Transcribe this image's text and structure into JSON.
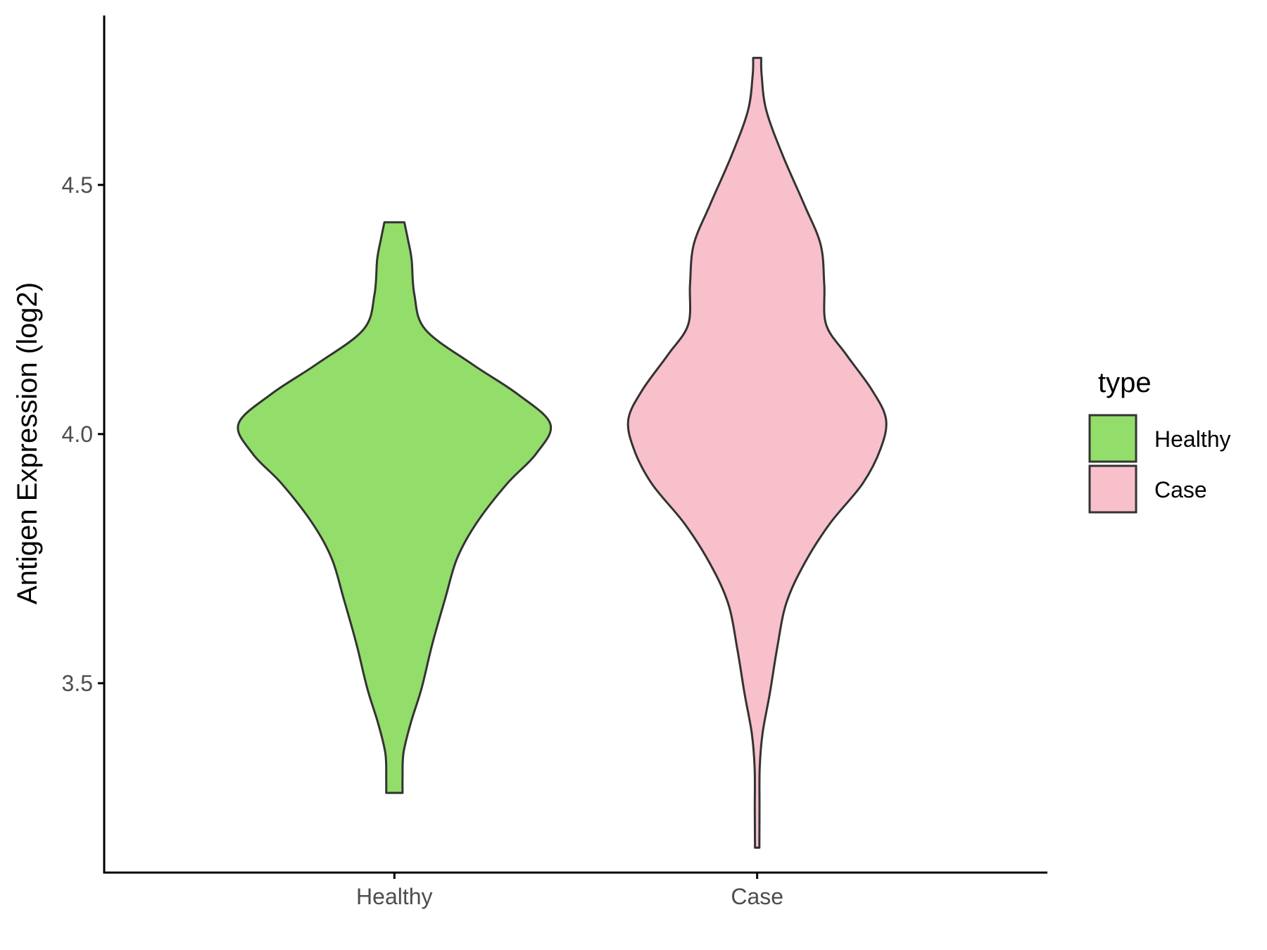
{
  "chart_data": {
    "type": "violin",
    "categories": [
      "Healthy",
      "Case"
    ],
    "ylabel": "Antigen Expression (log2)",
    "xlabel": "",
    "ylim": [
      3.12,
      4.84
    ],
    "yticks": [
      3.5,
      4.0,
      4.5
    ],
    "ytick_labels": [
      "3.5",
      "4.0",
      "4.5"
    ],
    "grid": false,
    "legend": {
      "title": "type",
      "position": "right",
      "entries": [
        {
          "label": "Healthy",
          "color": "#93dd6a"
        },
        {
          "label": "Case",
          "color": "#f7c0cb"
        }
      ]
    },
    "series": [
      {
        "category": "Healthy",
        "color": "#93dd6a",
        "min": 3.28,
        "max": 4.425,
        "density_profile": [
          [
            3.28,
            0.045
          ],
          [
            3.31,
            0.045
          ],
          [
            3.36,
            0.05
          ],
          [
            3.42,
            0.09
          ],
          [
            3.49,
            0.15
          ],
          [
            3.58,
            0.21
          ],
          [
            3.67,
            0.28
          ],
          [
            3.75,
            0.345
          ],
          [
            3.82,
            0.45
          ],
          [
            3.9,
            0.62
          ],
          [
            3.96,
            0.78
          ],
          [
            4.02,
            0.86
          ],
          [
            4.08,
            0.68
          ],
          [
            4.14,
            0.43
          ],
          [
            4.21,
            0.17
          ],
          [
            4.28,
            0.11
          ],
          [
            4.35,
            0.095
          ],
          [
            4.39,
            0.075
          ],
          [
            4.425,
            0.055
          ]
        ]
      },
      {
        "category": "Case",
        "color": "#f7c0cb",
        "min": 3.17,
        "max": 4.755,
        "density_profile": [
          [
            3.17,
            0.012
          ],
          [
            3.25,
            0.013
          ],
          [
            3.33,
            0.014
          ],
          [
            3.4,
            0.03
          ],
          [
            3.48,
            0.07
          ],
          [
            3.57,
            0.11
          ],
          [
            3.66,
            0.16
          ],
          [
            3.74,
            0.26
          ],
          [
            3.82,
            0.4
          ],
          [
            3.9,
            0.58
          ],
          [
            3.97,
            0.68
          ],
          [
            4.03,
            0.71
          ],
          [
            4.09,
            0.63
          ],
          [
            4.16,
            0.49
          ],
          [
            4.22,
            0.38
          ],
          [
            4.3,
            0.37
          ],
          [
            4.38,
            0.35
          ],
          [
            4.46,
            0.26
          ],
          [
            4.56,
            0.14
          ],
          [
            4.65,
            0.05
          ],
          [
            4.72,
            0.025
          ],
          [
            4.755,
            0.022
          ]
        ]
      }
    ]
  }
}
